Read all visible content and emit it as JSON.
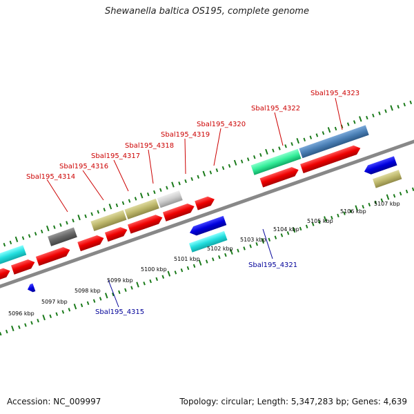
{
  "title": "Shewanella baltica OS195, complete genome",
  "footer": {
    "accession": "Accession: NC_009997",
    "summary": "Topology: circular; Length: 5,347,283 bp; Genes: 4,639"
  },
  "scale_labels": [
    "5096 kbp",
    "5097 kbp",
    "5098 kbp",
    "5099 kbp",
    "5100 kbp",
    "5101 kbp",
    "5102 kbp",
    "5103 kbp",
    "5104 kbp",
    "5105 kbp",
    "5106 kbp",
    "5107 kbp"
  ],
  "gene_labels_top": [
    "Sbal195_4314",
    "Sbal195_4316",
    "Sbal195_4317",
    "Sbal195_4318",
    "Sbal195_4319",
    "Sbal195_4320",
    "Sbal195_4322",
    "Sbal195_4323"
  ],
  "gene_labels_bottom": [
    "Sbal195_4315",
    "Sbal195_4321"
  ],
  "colors": {
    "cds_forward": "#ee0000",
    "cds_reverse": "#0000dd",
    "tick": "#1a7a1a",
    "backbone": "#888888",
    "label_top": "#cc0000",
    "label_bottom": "#000099",
    "feature_cyan": "#22dddd",
    "feature_khaki": "#bdb76b",
    "feature_gray": "#666666",
    "feature_lightgray": "#cccccc",
    "feature_green": "#33ee99",
    "feature_steelblue": "#4a7fb5"
  }
}
